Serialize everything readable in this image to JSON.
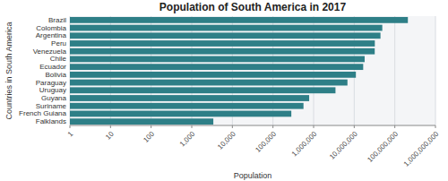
{
  "chart_data": {
    "type": "bar",
    "orientation": "horizontal",
    "title": "Population of South America in 2017",
    "xlabel": "Population",
    "ylabel": "Countries in South America",
    "categories": [
      "Brazil",
      "Colombia",
      "Argentina",
      "Peru",
      "Venezuela",
      "Chile",
      "Ecuador",
      "Bolivia",
      "Paraguay",
      "Uruguay",
      "Guyana",
      "Suriname",
      "French Guiana",
      "Falklands"
    ],
    "values": [
      209288278,
      49084841,
      44271041,
      32165485,
      31977065,
      18054726,
      16624858,
      10985059,
      6811297,
      3456750,
      777859,
      563402,
      282731,
      3398
    ],
    "color": "#2e7f87",
    "log": "x",
    "xlim": [
      1,
      1000000000
    ],
    "xticks": [
      1,
      10,
      100,
      {
        "value": 1000,
        "label": "1,000"
      },
      {
        "value": 10000,
        "label": "10,000"
      },
      {
        "value": 100000,
        "label": "100,000"
      },
      {
        "value": 1000000,
        "label": "1,000,000"
      },
      {
        "value": 10000000,
        "label": "10,000,000"
      },
      {
        "value": 100000000,
        "label": "100,000,000"
      },
      {
        "value": 1000000000,
        "label": "1,000,000,000"
      }
    ],
    "grid": true
  }
}
